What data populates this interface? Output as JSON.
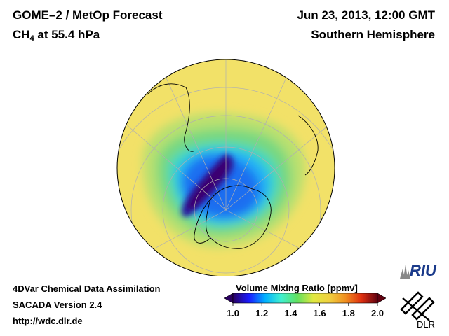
{
  "header": {
    "title_line1": "GOME–2 / MetOp Forecast",
    "species": "CH",
    "species_subscript": "4",
    "species_suffix": " at 55.4 hPa",
    "date": "Jun 23, 2013, 12:00 GMT",
    "hemisphere": "Southern Hemisphere"
  },
  "footer": {
    "line1": "4DVar Chemical Data Assimilation",
    "line2": "SACADA Version 2.4",
    "line3": "http://wdc.dlr.de"
  },
  "colorbar": {
    "title": "Volume Mixing Ratio [ppmv]",
    "tick_labels": [
      "1.0",
      "1.2",
      "1.4",
      "1.6",
      "1.8",
      "2.0"
    ],
    "min": 1.0,
    "max": 2.0,
    "colors": [
      "#2a0060",
      "#1a1aff",
      "#00b0ff",
      "#40f0d0",
      "#60e060",
      "#e0e840",
      "#f0d040",
      "#f09020",
      "#e03010",
      "#600010"
    ]
  },
  "logos": {
    "riu": "RIU",
    "dlr": "DLR"
  },
  "map": {
    "projection": "orthographic south polar",
    "field": "CH4 volume mixing ratio",
    "background_level_ppmv": 1.75,
    "polar_vortex_min_ppmv": 1.0,
    "ocean_background_color": "#f0e070"
  }
}
